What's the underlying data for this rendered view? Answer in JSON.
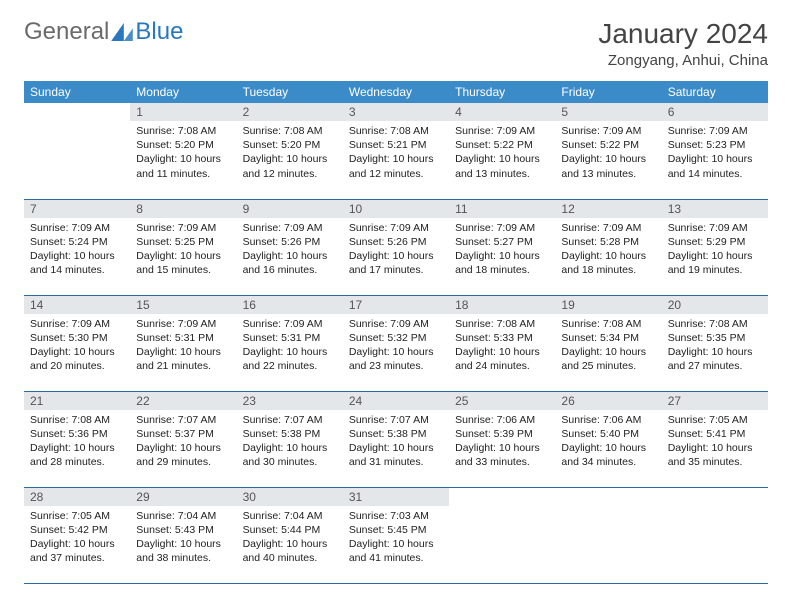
{
  "logo": {
    "text_general": "General",
    "text_blue": "Blue",
    "triangle_color": "#2878c0"
  },
  "title": {
    "month": "January 2024",
    "location": "Zongyang, Anhui, China"
  },
  "colors": {
    "header_bg": "#3b8bc9",
    "header_text": "#ffffff",
    "daynum_bg": "#e4e7ea",
    "daynum_text": "#555555",
    "border": "#2a6aa0",
    "body_text": "#222222",
    "page_bg": "#ffffff"
  },
  "typography": {
    "month_title_fontsize": 28,
    "location_fontsize": 15,
    "header_fontsize": 12,
    "daynum_fontsize": 12,
    "body_fontsize": 10.5
  },
  "layout": {
    "columns": 7,
    "rows": 5,
    "first_weekday_offset": 1
  },
  "weekdays": [
    "Sunday",
    "Monday",
    "Tuesday",
    "Wednesday",
    "Thursday",
    "Friday",
    "Saturday"
  ],
  "days": [
    {
      "n": 1,
      "sunrise": "7:08 AM",
      "sunset": "5:20 PM",
      "daylight": "10 hours and 11 minutes."
    },
    {
      "n": 2,
      "sunrise": "7:08 AM",
      "sunset": "5:20 PM",
      "daylight": "10 hours and 12 minutes."
    },
    {
      "n": 3,
      "sunrise": "7:08 AM",
      "sunset": "5:21 PM",
      "daylight": "10 hours and 12 minutes."
    },
    {
      "n": 4,
      "sunrise": "7:09 AM",
      "sunset": "5:22 PM",
      "daylight": "10 hours and 13 minutes."
    },
    {
      "n": 5,
      "sunrise": "7:09 AM",
      "sunset": "5:22 PM",
      "daylight": "10 hours and 13 minutes."
    },
    {
      "n": 6,
      "sunrise": "7:09 AM",
      "sunset": "5:23 PM",
      "daylight": "10 hours and 14 minutes."
    },
    {
      "n": 7,
      "sunrise": "7:09 AM",
      "sunset": "5:24 PM",
      "daylight": "10 hours and 14 minutes."
    },
    {
      "n": 8,
      "sunrise": "7:09 AM",
      "sunset": "5:25 PM",
      "daylight": "10 hours and 15 minutes."
    },
    {
      "n": 9,
      "sunrise": "7:09 AM",
      "sunset": "5:26 PM",
      "daylight": "10 hours and 16 minutes."
    },
    {
      "n": 10,
      "sunrise": "7:09 AM",
      "sunset": "5:26 PM",
      "daylight": "10 hours and 17 minutes."
    },
    {
      "n": 11,
      "sunrise": "7:09 AM",
      "sunset": "5:27 PM",
      "daylight": "10 hours and 18 minutes."
    },
    {
      "n": 12,
      "sunrise": "7:09 AM",
      "sunset": "5:28 PM",
      "daylight": "10 hours and 18 minutes."
    },
    {
      "n": 13,
      "sunrise": "7:09 AM",
      "sunset": "5:29 PM",
      "daylight": "10 hours and 19 minutes."
    },
    {
      "n": 14,
      "sunrise": "7:09 AM",
      "sunset": "5:30 PM",
      "daylight": "10 hours and 20 minutes."
    },
    {
      "n": 15,
      "sunrise": "7:09 AM",
      "sunset": "5:31 PM",
      "daylight": "10 hours and 21 minutes."
    },
    {
      "n": 16,
      "sunrise": "7:09 AM",
      "sunset": "5:31 PM",
      "daylight": "10 hours and 22 minutes."
    },
    {
      "n": 17,
      "sunrise": "7:09 AM",
      "sunset": "5:32 PM",
      "daylight": "10 hours and 23 minutes."
    },
    {
      "n": 18,
      "sunrise": "7:08 AM",
      "sunset": "5:33 PM",
      "daylight": "10 hours and 24 minutes."
    },
    {
      "n": 19,
      "sunrise": "7:08 AM",
      "sunset": "5:34 PM",
      "daylight": "10 hours and 25 minutes."
    },
    {
      "n": 20,
      "sunrise": "7:08 AM",
      "sunset": "5:35 PM",
      "daylight": "10 hours and 27 minutes."
    },
    {
      "n": 21,
      "sunrise": "7:08 AM",
      "sunset": "5:36 PM",
      "daylight": "10 hours and 28 minutes."
    },
    {
      "n": 22,
      "sunrise": "7:07 AM",
      "sunset": "5:37 PM",
      "daylight": "10 hours and 29 minutes."
    },
    {
      "n": 23,
      "sunrise": "7:07 AM",
      "sunset": "5:38 PM",
      "daylight": "10 hours and 30 minutes."
    },
    {
      "n": 24,
      "sunrise": "7:07 AM",
      "sunset": "5:38 PM",
      "daylight": "10 hours and 31 minutes."
    },
    {
      "n": 25,
      "sunrise": "7:06 AM",
      "sunset": "5:39 PM",
      "daylight": "10 hours and 33 minutes."
    },
    {
      "n": 26,
      "sunrise": "7:06 AM",
      "sunset": "5:40 PM",
      "daylight": "10 hours and 34 minutes."
    },
    {
      "n": 27,
      "sunrise": "7:05 AM",
      "sunset": "5:41 PM",
      "daylight": "10 hours and 35 minutes."
    },
    {
      "n": 28,
      "sunrise": "7:05 AM",
      "sunset": "5:42 PM",
      "daylight": "10 hours and 37 minutes."
    },
    {
      "n": 29,
      "sunrise": "7:04 AM",
      "sunset": "5:43 PM",
      "daylight": "10 hours and 38 minutes."
    },
    {
      "n": 30,
      "sunrise": "7:04 AM",
      "sunset": "5:44 PM",
      "daylight": "10 hours and 40 minutes."
    },
    {
      "n": 31,
      "sunrise": "7:03 AM",
      "sunset": "5:45 PM",
      "daylight": "10 hours and 41 minutes."
    }
  ],
  "labels": {
    "sunrise": "Sunrise:",
    "sunset": "Sunset:",
    "daylight": "Daylight:"
  }
}
